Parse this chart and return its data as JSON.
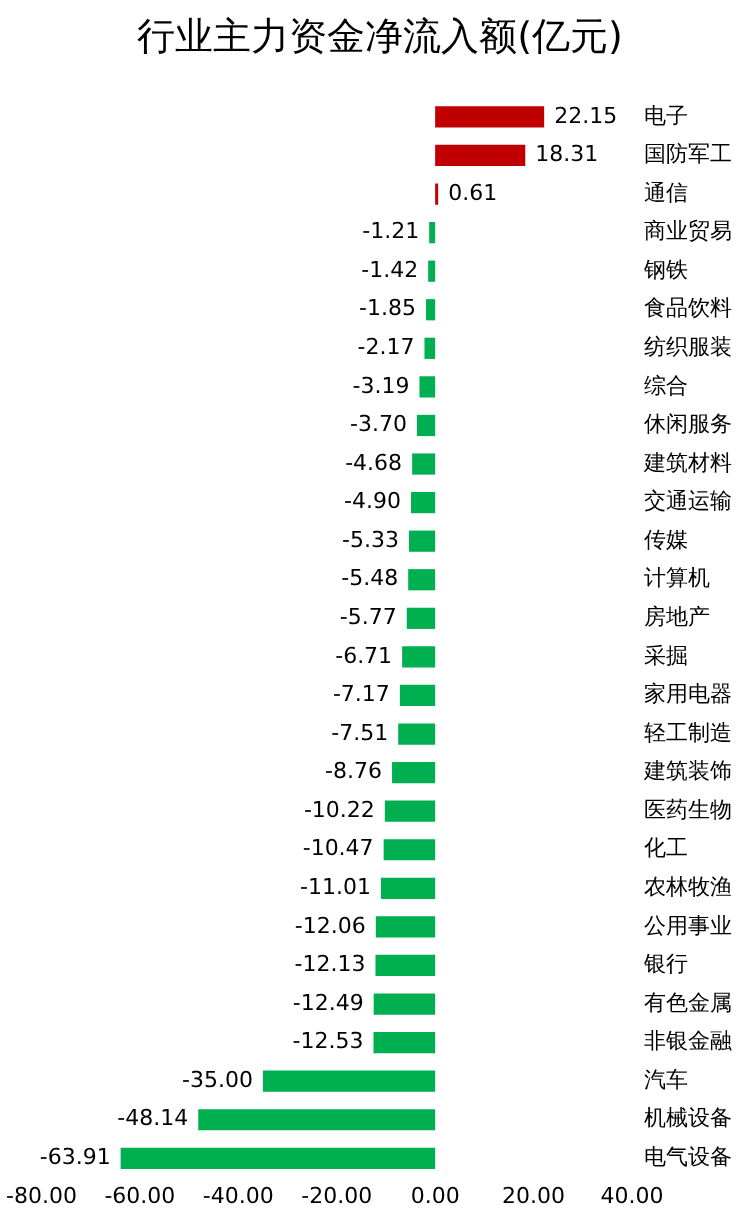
{
  "chart_data": {
    "type": "bar",
    "orientation": "horizontal",
    "title": "行业主力资金净流入额(亿元)",
    "categories": [
      "电子",
      "国防军工",
      "通信",
      "商业贸易",
      "钢铁",
      "食品饮料",
      "纺织服装",
      "综合",
      "休闲服务",
      "建筑材料",
      "交通运输",
      "传媒",
      "计算机",
      "房地产",
      "采掘",
      "家用电器",
      "轻工制造",
      "建筑装饰",
      "医药生物",
      "化工",
      "农林牧渔",
      "公用事业",
      "银行",
      "有色金属",
      "非银金融",
      "汽车",
      "机械设备",
      "电气设备"
    ],
    "values": [
      22.15,
      18.31,
      0.61,
      -1.21,
      -1.42,
      -1.85,
      -2.17,
      -3.19,
      -3.7,
      -4.68,
      -4.9,
      -5.33,
      -5.48,
      -5.77,
      -6.71,
      -7.17,
      -7.51,
      -8.76,
      -10.22,
      -10.47,
      -11.01,
      -12.06,
      -12.13,
      -12.49,
      -12.53,
      -35.0,
      -48.14,
      -63.91
    ],
    "value_labels": [
      "22.15",
      "18.31",
      "0.61",
      "-1.21",
      "-1.42",
      "-1.85",
      "-2.17",
      "-3.19",
      "-3.70",
      "-4.68",
      "-4.90",
      "-5.33",
      "-5.48",
      "-5.77",
      "-6.71",
      "-7.17",
      "-7.51",
      "-8.76",
      "-10.22",
      "-10.47",
      "-11.01",
      "-12.06",
      "-12.13",
      "-12.49",
      "-12.53",
      "-35.00",
      "-48.14",
      "-63.91"
    ],
    "colors": [
      "#c00000",
      "#c00000",
      "#c00000",
      "#00b050",
      "#00b050",
      "#00b050",
      "#00b050",
      "#00b050",
      "#00b050",
      "#00b050",
      "#00b050",
      "#00b050",
      "#00b050",
      "#00b050",
      "#00b050",
      "#00b050",
      "#00b050",
      "#00b050",
      "#00b050",
      "#00b050",
      "#00b050",
      "#00b050",
      "#00b050",
      "#00b050",
      "#00b050",
      "#00b050",
      "#00b050",
      "#00b050"
    ],
    "xlim": [
      -80,
      40
    ],
    "xticks": [
      {
        "value": -80,
        "label": "-80.00"
      },
      {
        "value": -60,
        "label": "-60.00"
      },
      {
        "value": -40,
        "label": "-40.00"
      },
      {
        "value": -20,
        "label": "-20.00"
      },
      {
        "value": 0,
        "label": "0.00"
      },
      {
        "value": 20,
        "label": "20.00"
      },
      {
        "value": 40,
        "label": "40.00"
      }
    ],
    "grid": false,
    "legend": false
  }
}
